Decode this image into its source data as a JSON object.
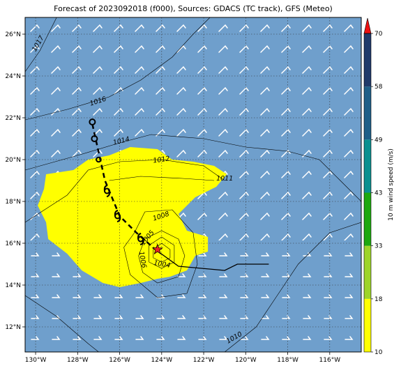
{
  "title": "Forecast of 2023092018 (f000), Sources: GDACS (TC track), GFS (Meteo)",
  "map": {
    "lon_range": [
      -130.5,
      -114.5
    ],
    "lat_range": [
      10.8,
      26.8
    ],
    "lon_ticks": [
      {
        "value": -130,
        "label": "130°W"
      },
      {
        "value": -128,
        "label": "128°W"
      },
      {
        "value": -126,
        "label": "126°W"
      },
      {
        "value": -124,
        "label": "124°W"
      },
      {
        "value": -122,
        "label": "122°W"
      },
      {
        "value": -120,
        "label": "120°W"
      },
      {
        "value": -118,
        "label": "118°W"
      },
      {
        "value": -116,
        "label": "116°W"
      }
    ],
    "lat_ticks": [
      {
        "value": 12,
        "label": "12°N"
      },
      {
        "value": 14,
        "label": "14°N"
      },
      {
        "value": 16,
        "label": "16°N"
      },
      {
        "value": 18,
        "label": "18°N"
      },
      {
        "value": 20,
        "label": "20°N"
      },
      {
        "value": 22,
        "label": "22°N"
      },
      {
        "value": 24,
        "label": "24°N"
      },
      {
        "value": 26,
        "label": "26°N"
      }
    ],
    "ocean_color": "#6f9fcc",
    "wind_area_color": "#ffff00",
    "grid": true
  },
  "isobars": [
    {
      "label": "1017",
      "label_at": [
        -129.8,
        25.5
      ],
      "label_angle": -60,
      "points": [
        [
          -130.5,
          24.2
        ],
        [
          -129.8,
          25.2
        ],
        [
          -129.0,
          26.8
        ]
      ]
    },
    {
      "label": "1016",
      "label_at": [
        -127.0,
        22.7
      ],
      "label_angle": -18,
      "points": [
        [
          -130.5,
          21.9
        ],
        [
          -128.5,
          22.4
        ],
        [
          -126.5,
          23.0
        ],
        [
          -125.0,
          23.8
        ],
        [
          -123.5,
          24.9
        ],
        [
          -122.5,
          26.0
        ],
        [
          -121.7,
          26.8
        ]
      ]
    },
    {
      "label": "1014",
      "label_at": [
        -125.9,
        20.8
      ],
      "label_angle": -14,
      "points": [
        [
          -130.5,
          19.5
        ],
        [
          -128.0,
          20.2
        ],
        [
          -126.0,
          20.8
        ],
        [
          -124.5,
          21.2
        ],
        [
          -122.0,
          21.0
        ],
        [
          -120.0,
          20.6
        ],
        [
          -118.0,
          20.4
        ],
        [
          -116.5,
          20.0
        ],
        [
          -115.5,
          19.0
        ],
        [
          -114.5,
          18.0
        ]
      ]
    },
    {
      "label": "1012",
      "label_at": [
        -124.0,
        19.9
      ],
      "label_angle": -8,
      "points": [
        [
          -130.5,
          17.0
        ],
        [
          -128.5,
          18.3
        ],
        [
          -127.5,
          19.5
        ],
        [
          -126.0,
          19.9
        ],
        [
          -124.0,
          20.0
        ],
        [
          -122.0,
          19.7
        ],
        [
          -121.0,
          19.0
        ]
      ]
    },
    {
      "label": "1011",
      "label_at": [
        -121.0,
        19.0
      ],
      "label_angle": 0,
      "points": [
        [
          -126.5,
          19.0
        ],
        [
          -125.0,
          19.2
        ],
        [
          -123.0,
          19.1
        ],
        [
          -121.5,
          19.0
        ]
      ]
    },
    {
      "label": "1010",
      "label_at": [
        -120.5,
        11.4
      ],
      "label_angle": -30,
      "points": [
        [
          -130.5,
          13.5
        ],
        [
          -129.0,
          12.5
        ],
        [
          -127.5,
          11.2
        ],
        [
          -127.0,
          10.8
        ],
        [
          -121.0,
          10.8
        ],
        [
          -119.5,
          12.0
        ],
        [
          -118.5,
          13.5
        ],
        [
          -117.5,
          15.0
        ],
        [
          -116.0,
          16.5
        ],
        [
          -114.5,
          17.0
        ]
      ]
    },
    {
      "label": "1008",
      "label_at": [
        -124.0,
        17.2
      ],
      "label_angle": -18,
      "points": [
        [
          -125.3,
          16.5
        ],
        [
          -124.8,
          17.5
        ],
        [
          -123.5,
          17.6
        ],
        [
          -122.5,
          16.5
        ],
        [
          -122.3,
          15.0
        ],
        [
          -122.8,
          13.6
        ],
        [
          -124.2,
          13.4
        ],
        [
          -125.5,
          14.5
        ],
        [
          -125.8,
          15.8
        ],
        [
          -125.3,
          16.5
        ]
      ]
    },
    {
      "label": "1006",
      "label_at": [
        -125.0,
        15.2
      ],
      "label_angle": 80,
      "points": [
        [
          -124.8,
          16.2
        ],
        [
          -124.0,
          16.6
        ],
        [
          -123.2,
          16.2
        ],
        [
          -122.9,
          15.4
        ],
        [
          -123.2,
          14.4
        ],
        [
          -124.2,
          14.1
        ],
        [
          -124.9,
          14.6
        ],
        [
          -125.1,
          15.4
        ],
        [
          -124.8,
          16.2
        ]
      ]
    },
    {
      "label": "1005",
      "label_at": [
        -124.6,
        16.2
      ],
      "label_angle": -50,
      "points": [
        [
          -124.6,
          15.9
        ],
        [
          -124.0,
          16.3
        ],
        [
          -123.4,
          15.9
        ],
        [
          -123.4,
          15.1
        ],
        [
          -124.0,
          14.8
        ],
        [
          -124.6,
          15.1
        ],
        [
          -124.6,
          15.9
        ]
      ]
    },
    {
      "label": "1004",
      "label_at": [
        -124.0,
        14.9
      ],
      "label_angle": 10,
      "points": [
        [
          -124.4,
          15.7
        ],
        [
          -124.0,
          16.0
        ],
        [
          -123.6,
          15.7
        ],
        [
          -123.6,
          15.3
        ],
        [
          -124.0,
          15.1
        ],
        [
          -124.4,
          15.3
        ],
        [
          -124.4,
          15.7
        ]
      ]
    }
  ],
  "wind_area": [
    [
      -129.5,
      19.3
    ],
    [
      -128.2,
      19.5
    ],
    [
      -127.5,
      20.0
    ],
    [
      -126.5,
      20.2
    ],
    [
      -125.5,
      20.6
    ],
    [
      -124.2,
      20.5
    ],
    [
      -123.5,
      20.0
    ],
    [
      -122.5,
      19.9
    ],
    [
      -121.5,
      19.7
    ],
    [
      -120.9,
      19.3
    ],
    [
      -121.4,
      18.7
    ],
    [
      -122.4,
      18.2
    ],
    [
      -123.2,
      17.4
    ],
    [
      -122.8,
      16.6
    ],
    [
      -121.8,
      16.3
    ],
    [
      -121.8,
      15.6
    ],
    [
      -122.4,
      15.4
    ],
    [
      -122.8,
      14.7
    ],
    [
      -123.6,
      14.4
    ],
    [
      -124.2,
      14.3
    ],
    [
      -125.0,
      14.1
    ],
    [
      -126.0,
      13.9
    ],
    [
      -126.8,
      14.1
    ],
    [
      -127.8,
      14.7
    ],
    [
      -128.5,
      15.5
    ],
    [
      -129.4,
      16.2
    ],
    [
      -129.5,
      17.0
    ],
    [
      -129.9,
      17.8
    ],
    [
      -129.6,
      18.6
    ],
    [
      -129.5,
      19.3
    ]
  ],
  "track_past": [
    [
      -127.3,
      21.7
    ],
    [
      -126.7,
      19.0
    ],
    [
      -126.0,
      17.3
    ],
    [
      -125.2,
      16.5
    ],
    [
      -124.3,
      15.7
    ]
  ],
  "track_forecast": [
    [
      -124.3,
      15.7
    ],
    [
      -123.2,
      14.9
    ],
    [
      -121.0,
      14.7
    ],
    [
      -120.4,
      15.0
    ],
    [
      -118.9,
      15.0
    ]
  ],
  "storm_symbols": [
    {
      "lon": -127.3,
      "lat": 21.8,
      "kind": "circle"
    },
    {
      "lon": -127.2,
      "lat": 21.0,
      "kind": "circle"
    },
    {
      "lon": -127.0,
      "lat": 20.0,
      "kind": "circle-small"
    },
    {
      "lon": -126.6,
      "lat": 18.5,
      "kind": "storm"
    },
    {
      "lon": -126.1,
      "lat": 17.3,
      "kind": "storm"
    },
    {
      "lon": -125.0,
      "lat": 16.2,
      "kind": "storm"
    }
  ],
  "current_position": {
    "lon": -124.2,
    "lat": 15.7,
    "color": "#ee2222"
  },
  "colorbar": {
    "label": "10 m wind speed (m/s)",
    "ticks": [
      "10",
      "18",
      "33",
      "43",
      "49",
      "58",
      "70"
    ],
    "colors": [
      "#ffff00",
      "#9ed42a",
      "#1ea80f",
      "#0b9090",
      "#1f5f88",
      "#203a6a"
    ],
    "extend_color": "#ee1111"
  }
}
